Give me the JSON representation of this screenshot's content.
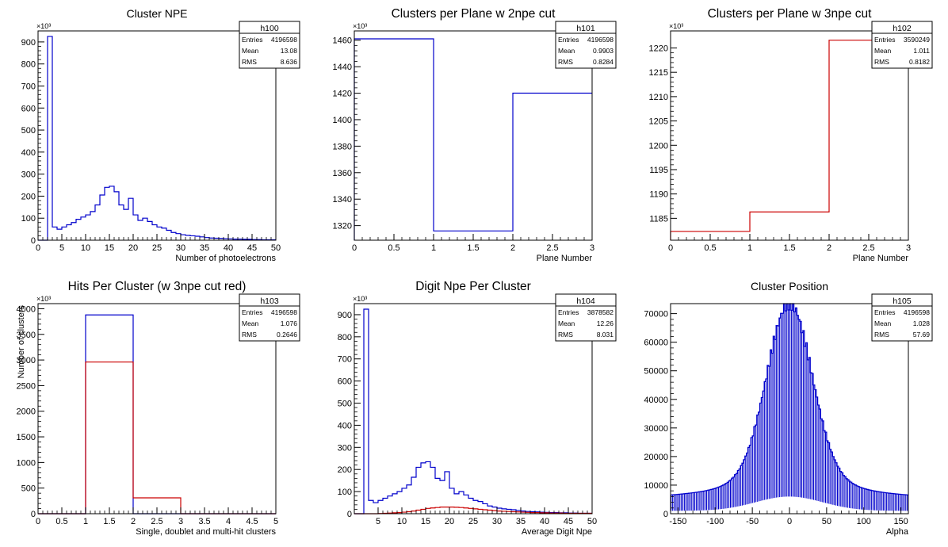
{
  "chart_data": [
    {
      "type": "histogram",
      "title": "Cluster NPE",
      "xlabel": "Number of photoelectrons",
      "ylabel": "",
      "exponent": "×10³",
      "xlim": [
        0,
        50
      ],
      "ylim": [
        0,
        950
      ],
      "xticks": [
        0,
        5,
        10,
        15,
        20,
        25,
        30,
        35,
        40,
        45,
        50
      ],
      "yticks": [
        0,
        100,
        200,
        300,
        400,
        500,
        600,
        700,
        800,
        900
      ],
      "stats": {
        "name": "h100",
        "rows": [
          [
            "Entries",
            "4196598"
          ],
          [
            "Mean",
            "13.08"
          ],
          [
            "RMS",
            "8.636"
          ]
        ]
      },
      "series": [
        {
          "color": "#0000cc",
          "edges": [
            0,
            1,
            2,
            3,
            4,
            5,
            6,
            7,
            8,
            9,
            10,
            11,
            12,
            13,
            14,
            15,
            16,
            17,
            18,
            19,
            20,
            21,
            22,
            23,
            24,
            25,
            26,
            27,
            28,
            29,
            30,
            31,
            32,
            33,
            34,
            35,
            36,
            37,
            38,
            39,
            40,
            41,
            42,
            43,
            44,
            45,
            46,
            47,
            48,
            49,
            50
          ],
          "values": [
            0,
            0,
            925,
            60,
            50,
            60,
            70,
            80,
            95,
            105,
            115,
            130,
            160,
            205,
            240,
            245,
            220,
            160,
            140,
            190,
            115,
            90,
            100,
            85,
            70,
            60,
            55,
            45,
            35,
            30,
            25,
            22,
            20,
            18,
            15,
            12,
            10,
            9,
            8,
            7,
            6,
            5,
            5,
            4,
            4,
            3,
            3,
            2,
            2,
            2
          ]
        }
      ]
    },
    {
      "type": "histogram",
      "title": "Clusters per Plane w 2npe cut",
      "xlabel": "Plane Number",
      "ylabel": "",
      "exponent": "×10³",
      "xlim": [
        0,
        3
      ],
      "ylim": [
        1309,
        1467
      ],
      "xticks": [
        0,
        0.5,
        1,
        1.5,
        2,
        2.5,
        3
      ],
      "yticks": [
        1320,
        1340,
        1360,
        1380,
        1400,
        1420,
        1440,
        1460
      ],
      "stats": {
        "name": "h101",
        "rows": [
          [
            "Entries",
            "4196598"
          ],
          [
            "Mean",
            "0.9903"
          ],
          [
            "RMS",
            "0.8284"
          ]
        ]
      },
      "series": [
        {
          "color": "#0000cc",
          "edges": [
            0,
            1,
            2,
            3
          ],
          "values": [
            1461,
            1316,
            1420
          ]
        }
      ]
    },
    {
      "type": "histogram",
      "title": "Clusters per Plane w 3npe cut",
      "xlabel": "Plane Number",
      "ylabel": "",
      "exponent": "×10³",
      "xlim": [
        0,
        3
      ],
      "ylim": [
        1180.5,
        1223.5
      ],
      "xticks": [
        0,
        0.5,
        1,
        1.5,
        2,
        2.5,
        3
      ],
      "yticks": [
        1185,
        1190,
        1195,
        1200,
        1205,
        1210,
        1215,
        1220
      ],
      "stats": {
        "name": "h102",
        "rows": [
          [
            "Entries",
            "3590249"
          ],
          [
            "Mean",
            "1.011"
          ],
          [
            "RMS",
            "0.8182"
          ]
        ]
      },
      "series": [
        {
          "color": "#cc0000",
          "edges": [
            0,
            1,
            2,
            3
          ],
          "values": [
            1182.3,
            1186.3,
            1221.6
          ]
        }
      ]
    },
    {
      "type": "histogram",
      "title": "Hits Per Cluster (w 3npe cut red)",
      "xlabel": "Single, doublet and multi-hit clusters",
      "ylabel": "Number of clusters",
      "exponent": "×10³",
      "xlim": [
        0,
        5
      ],
      "ylim": [
        0,
        4100
      ],
      "xticks": [
        0,
        0.5,
        1,
        1.5,
        2,
        2.5,
        3,
        3.5,
        4,
        4.5,
        5
      ],
      "yticks": [
        0,
        500,
        1000,
        1500,
        2000,
        2500,
        3000,
        3500,
        4000
      ],
      "stats": {
        "name": "h103",
        "rows": [
          [
            "Entries",
            "4196598"
          ],
          [
            "Mean",
            "1.076"
          ],
          [
            "RMS",
            "0.2646"
          ]
        ]
      },
      "series": [
        {
          "color": "#0000cc",
          "edges": [
            0,
            1,
            2,
            3,
            4,
            5
          ],
          "values": [
            0,
            3880,
            0,
            0,
            0
          ]
        },
        {
          "color": "#cc0000",
          "edges": [
            0,
            1,
            2,
            3,
            4,
            5
          ],
          "values": [
            0,
            2960,
            310,
            0,
            0
          ]
        }
      ]
    },
    {
      "type": "histogram",
      "title": "Digit Npe Per Cluster",
      "xlabel": "Average Digit Npe",
      "ylabel": "",
      "exponent": "×10³",
      "xlim": [
        0,
        50
      ],
      "ylim": [
        0,
        950
      ],
      "xticks": [
        5,
        10,
        15,
        20,
        25,
        30,
        35,
        40,
        45,
        50
      ],
      "yticks": [
        0,
        100,
        200,
        300,
        400,
        500,
        600,
        700,
        800,
        900
      ],
      "stats": {
        "name": "h104",
        "rows": [
          [
            "Entries",
            "3878582"
          ],
          [
            "Mean",
            "12.26"
          ],
          [
            "RMS",
            "8.031"
          ]
        ]
      },
      "series": [
        {
          "color": "#0000cc",
          "edges": [
            0,
            1,
            2,
            3,
            4,
            5,
            6,
            7,
            8,
            9,
            10,
            11,
            12,
            13,
            14,
            15,
            16,
            17,
            18,
            19,
            20,
            21,
            22,
            23,
            24,
            25,
            26,
            27,
            28,
            29,
            30,
            31,
            32,
            33,
            34,
            35,
            36,
            37,
            38,
            39,
            40,
            41,
            42,
            43,
            44,
            45,
            46,
            47,
            48,
            49,
            50
          ],
          "values": [
            0,
            0,
            925,
            60,
            50,
            60,
            70,
            80,
            90,
            100,
            115,
            130,
            165,
            210,
            230,
            235,
            210,
            160,
            150,
            190,
            115,
            90,
            100,
            85,
            70,
            60,
            55,
            45,
            35,
            30,
            25,
            22,
            20,
            18,
            15,
            12,
            10,
            9,
            8,
            7,
            6,
            5,
            5,
            4,
            4,
            3,
            3,
            2,
            2,
            2
          ]
        },
        {
          "color": "#cc0000",
          "edges": [
            0,
            1,
            2,
            3,
            4,
            5,
            6,
            7,
            8,
            9,
            10,
            11,
            12,
            13,
            14,
            15,
            16,
            17,
            18,
            19,
            20,
            21,
            22,
            23,
            24,
            25,
            26,
            27,
            28,
            29,
            30,
            31,
            32,
            33,
            34,
            35,
            36,
            37,
            38,
            39,
            40,
            41,
            42,
            43,
            44,
            45,
            46,
            47,
            48,
            49,
            50
          ],
          "values": [
            0,
            0,
            0,
            0,
            0,
            1,
            2,
            3,
            4,
            5,
            7,
            9,
            12,
            16,
            20,
            24,
            26,
            28,
            30,
            30,
            30,
            29,
            28,
            26,
            24,
            22,
            20,
            18,
            16,
            14,
            12,
            11,
            10,
            9,
            8,
            7,
            6,
            5,
            5,
            4,
            4,
            3,
            3,
            3,
            2,
            2,
            2,
            2,
            2,
            2
          ]
        }
      ]
    },
    {
      "type": "histogram",
      "title": "Cluster Position",
      "xlabel": "Alpha",
      "ylabel": "",
      "exponent": "",
      "xlim": [
        -160,
        160
      ],
      "ylim": [
        0,
        73500
      ],
      "xticks": [
        -150,
        -100,
        -50,
        0,
        50,
        100,
        150
      ],
      "yticks": [
        0,
        10000,
        20000,
        30000,
        40000,
        50000,
        60000,
        70000
      ],
      "stats": {
        "name": "h105",
        "rows": [
          [
            "Entries",
            "4196598"
          ],
          [
            "Mean",
            "1.028"
          ],
          [
            "RMS",
            "57.69"
          ]
        ]
      },
      "series": [
        {
          "color": "#0000cc",
          "generated": "alpha",
          "peak": 70000,
          "center": 0,
          "width": 30,
          "base": 8000,
          "floor_center": 6000,
          "floor_edge": 1000,
          "binwidth": 2
        }
      ]
    }
  ]
}
